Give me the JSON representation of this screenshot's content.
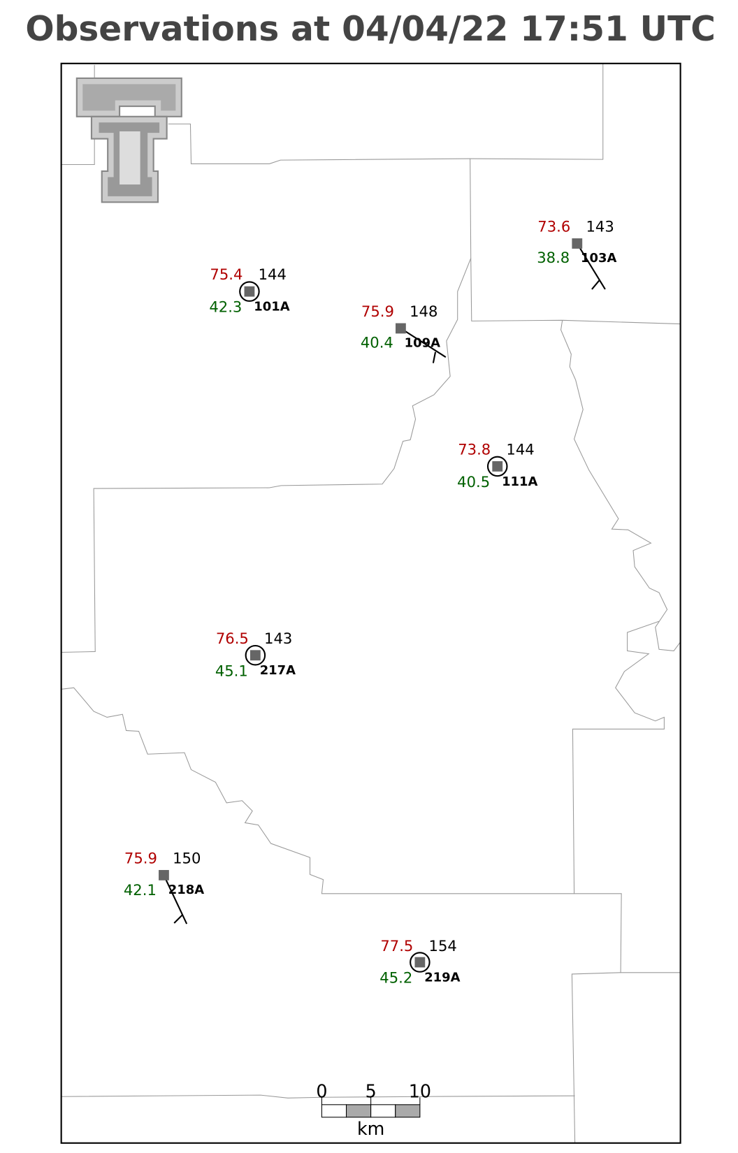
{
  "title": "Observations at 04/04/22 17:51 UTC",
  "stations": [
    {
      "id": "101A",
      "temperature": 75.4,
      "dewpoint": 42.3,
      "pressure": 144
    },
    {
      "id": "109A",
      "temperature": 75.9,
      "dewpoint": 40.4,
      "pressure": 148
    },
    {
      "id": "103A",
      "temperature": 73.6,
      "dewpoint": 38.8,
      "pressure": 143
    },
    {
      "id": "111A",
      "temperature": 73.8,
      "dewpoint": 40.5,
      "pressure": 144
    },
    {
      "id": "217A",
      "temperature": 76.5,
      "dewpoint": 45.1,
      "pressure": 143
    },
    {
      "id": "218A",
      "temperature": 75.9,
      "dewpoint": 42.1,
      "pressure": 150
    },
    {
      "id": "219A",
      "temperature": 77.5,
      "dewpoint": 45.2,
      "pressure": 154
    }
  ],
  "scale_bar": {
    "ticks": [
      0,
      5,
      10
    ],
    "unit": "km"
  }
}
